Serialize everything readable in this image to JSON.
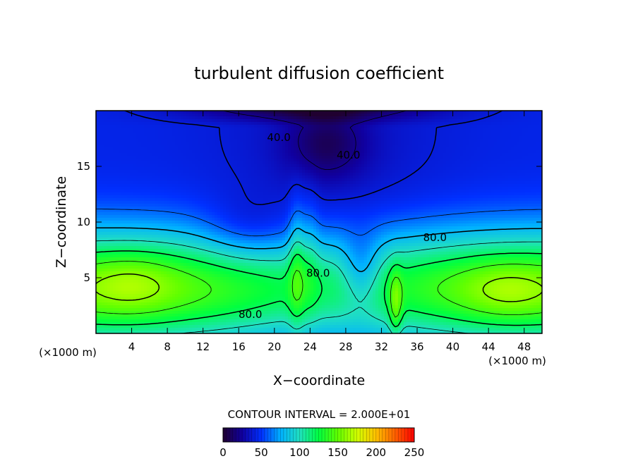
{
  "chart_data": {
    "type": "heatmap",
    "title": "turbulent diffusion coefficient",
    "xlabel": "X−coordinate",
    "ylabel": "Z−coordinate",
    "x_unit": "(×1000 m)",
    "y_unit": "(×1000 m)",
    "xlim": [
      0,
      50
    ],
    "ylim": [
      0,
      20
    ],
    "x_ticks": [
      4,
      8,
      12,
      16,
      20,
      24,
      28,
      32,
      36,
      40,
      44,
      48
    ],
    "y_ticks": [
      5,
      10,
      15
    ],
    "contour_interval_text": "CONTOUR INTERVAL = 2.000E+01",
    "contour_labels": [
      {
        "text": "40.0",
        "x": 20.5,
        "z": 17.6
      },
      {
        "text": "40.0",
        "x": 28.3,
        "z": 16.0
      },
      {
        "text": "80.0",
        "x": 38.0,
        "z": 8.6
      },
      {
        "text": "80.0",
        "x": 17.3,
        "z": 1.7
      },
      {
        "text": "80.0",
        "x": 24.9,
        "z": 5.4
      }
    ],
    "colorbar": {
      "range": [
        0,
        250
      ],
      "ticks": [
        0,
        50,
        100,
        150,
        200,
        250
      ],
      "colors": [
        "#200030",
        "#1000a0",
        "#0030ff",
        "#00b0ff",
        "#20e0c0",
        "#00ff40",
        "#60ff00",
        "#d0ff00",
        "#ffc000",
        "#ff6000",
        "#ff0000"
      ]
    }
  }
}
